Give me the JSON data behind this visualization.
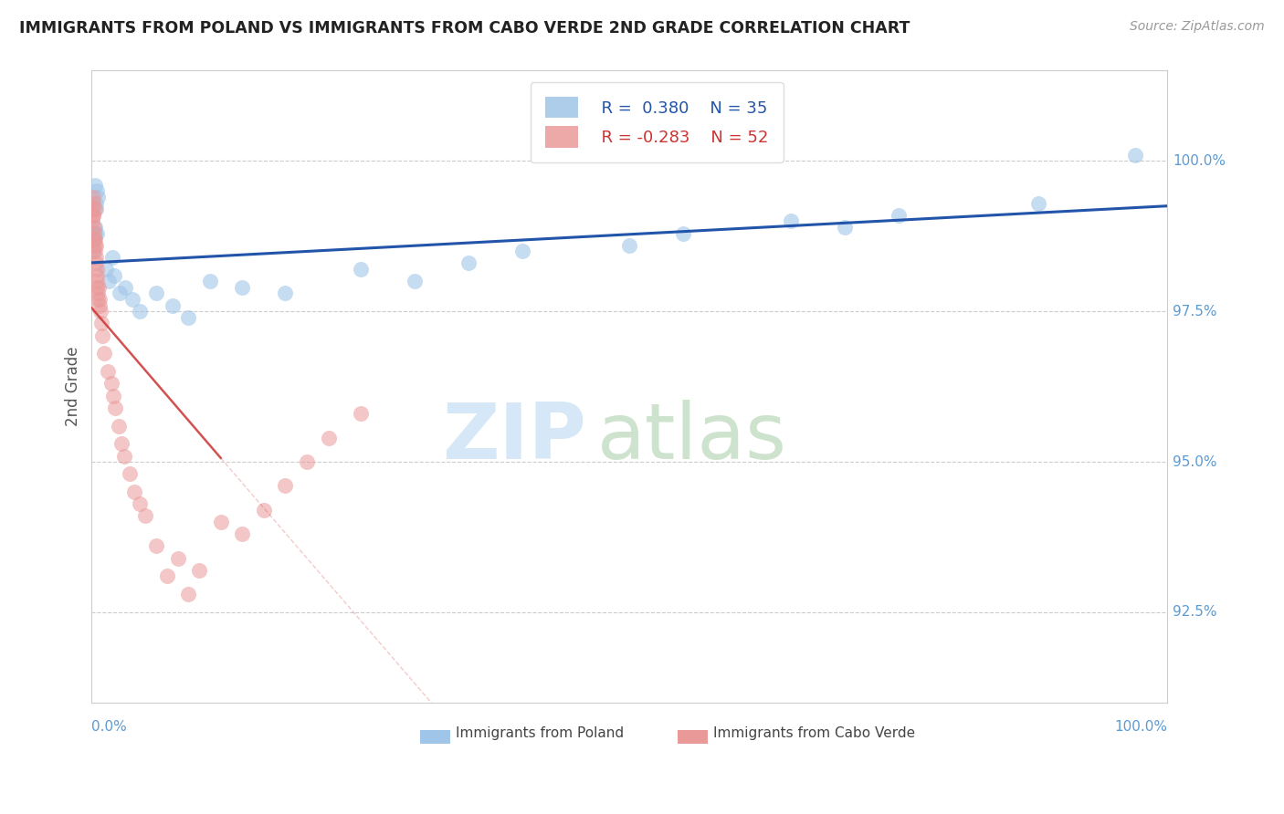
{
  "title": "IMMIGRANTS FROM POLAND VS IMMIGRANTS FROM CABO VERDE 2ND GRADE CORRELATION CHART",
  "source": "Source: ZipAtlas.com",
  "ylabel": "2nd Grade",
  "xlim": [
    0.0,
    100.0
  ],
  "ylim": [
    91.0,
    101.5
  ],
  "yticks": [
    92.5,
    95.0,
    97.5,
    100.0
  ],
  "ytick_labels": [
    "92.5%",
    "95.0%",
    "97.5%",
    "100.0%"
  ],
  "poland_color": "#9fc5e8",
  "cabo_color": "#ea9999",
  "poland_line_color": "#2255aa",
  "cabo_line_color": "#cc3333",
  "grid_color": "#cccccc",
  "tick_label_color": "#5b9bd5",
  "poland_x": [
    0.3,
    0.4,
    0.5,
    0.6,
    0.2,
    0.35,
    0.42,
    0.28,
    0.18,
    0.52,
    1.3,
    1.6,
    2.1,
    1.9,
    2.6,
    3.1,
    3.8,
    4.5,
    6.0,
    7.5,
    9.0,
    11.0,
    14.0,
    18.0,
    25.0,
    30.0,
    35.0,
    40.0,
    50.0,
    55.0,
    65.0,
    70.0,
    75.0,
    88.0,
    97.0
  ],
  "poland_y": [
    99.6,
    99.3,
    98.8,
    99.4,
    98.7,
    98.9,
    99.2,
    98.8,
    98.5,
    99.5,
    98.2,
    98.0,
    98.1,
    98.4,
    97.8,
    97.9,
    97.7,
    97.5,
    97.8,
    97.6,
    97.4,
    98.0,
    97.9,
    97.8,
    98.2,
    98.0,
    98.3,
    98.5,
    98.6,
    98.8,
    99.0,
    98.9,
    99.1,
    99.3,
    100.1
  ],
  "cabo_x": [
    0.05,
    0.08,
    0.1,
    0.12,
    0.15,
    0.18,
    0.2,
    0.22,
    0.25,
    0.28,
    0.3,
    0.32,
    0.35,
    0.38,
    0.4,
    0.42,
    0.45,
    0.48,
    0.5,
    0.52,
    0.55,
    0.6,
    0.65,
    0.7,
    0.75,
    0.8,
    0.9,
    1.0,
    1.2,
    1.5,
    1.8,
    2.0,
    2.2,
    2.5,
    2.8,
    3.0,
    3.5,
    4.0,
    4.5,
    5.0,
    6.0,
    7.0,
    8.0,
    9.0,
    10.0,
    12.0,
    14.0,
    16.0,
    18.0,
    20.0,
    22.0,
    25.0
  ],
  "cabo_y": [
    99.0,
    99.2,
    99.3,
    99.1,
    99.4,
    99.1,
    98.9,
    98.8,
    98.7,
    99.2,
    98.6,
    98.7,
    98.5,
    98.6,
    98.4,
    98.3,
    98.2,
    98.1,
    98.0,
    97.9,
    97.8,
    97.7,
    97.9,
    97.6,
    97.7,
    97.5,
    97.3,
    97.1,
    96.8,
    96.5,
    96.3,
    96.1,
    95.9,
    95.6,
    95.3,
    95.1,
    94.8,
    94.5,
    94.3,
    94.1,
    93.6,
    93.1,
    93.4,
    92.8,
    93.2,
    94.0,
    93.8,
    94.2,
    94.6,
    95.0,
    95.4,
    95.8
  ],
  "cabo_solid_xmax": 12.0,
  "watermark_zip_color": "#d6e8f7",
  "watermark_atlas_color": "#c8e0c8"
}
